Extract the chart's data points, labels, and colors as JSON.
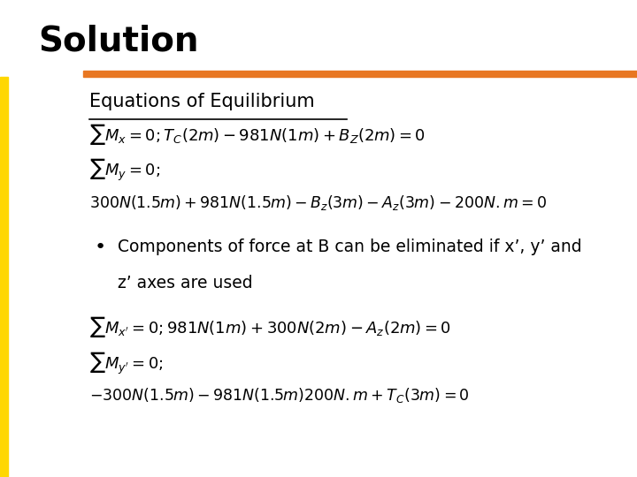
{
  "title": "Solution",
  "title_fontsize": 28,
  "heading": "Equations of Equilibrium",
  "heading_fontsize": 15,
  "orange_bar_color": "#E87722",
  "yellow_bar_color": "#FFD700",
  "bg_color": "#FFFFFF",
  "text_color": "#000000",
  "eq1": "$\\sum M_x = 0; T_C(2m) - 981N(1m) + B_Z(2m) = 0$",
  "eq2": "$\\sum M_y = 0;$",
  "eq3": "$300N(1.5m) + 981N(1.5m) - B_z(3m) - A_z(3m) - 200N.m = 0$",
  "bullet_line1": "Components of force at B can be eliminated if x’, y’ and",
  "bullet_line2": "z’ axes are used",
  "eq4": "$\\sum M_{x'} = 0; 981N(1m) + 300N(2m) - A_z(2m) = 0$",
  "eq5": "$\\sum M_{y'} = 0;$",
  "eq6": "$-300N(1.5m) - 981N(1.5m)200N.m + T_C(3m) = 0$"
}
